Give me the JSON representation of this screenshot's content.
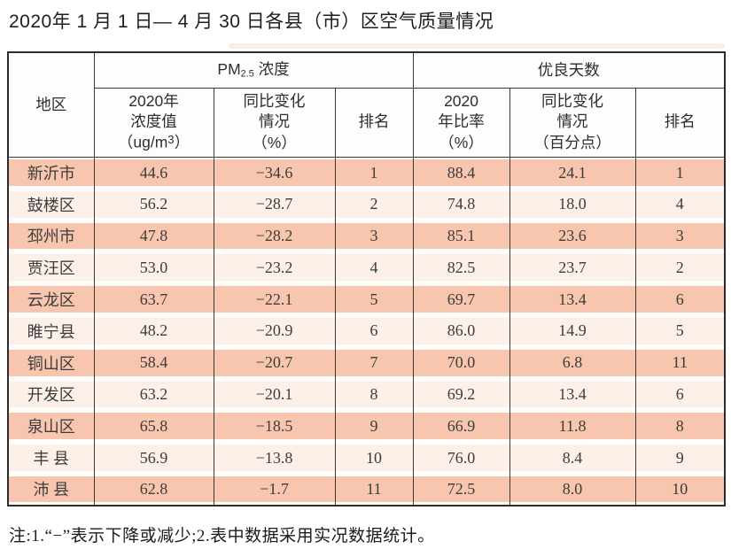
{
  "page_title": "2020年 1 月 1 日— 4 月 30 日各县（市）区空气质量情况",
  "note": "注:1.“−”表示下降或减少;2.表中数据采用实况数据统计。",
  "colors": {
    "band_odd": "#f8c6ae",
    "band_even": "#fdf0e9",
    "border_dark": "#383838",
    "header_bg": "#fffdfb"
  },
  "chart_data": {
    "type": "table",
    "title": "2020年 1 月 1 日— 4 月 30 日各县（市）区空气质量情况",
    "header": {
      "region": "地区",
      "pm_group_prefix": "PM",
      "pm_group_sub": "2.5",
      "pm_group_suffix": " 浓度",
      "good_days_group": "优良天数",
      "pm_value": "2020年\n浓度值\n（ug/m³）",
      "pm_value_line1": "2020年",
      "pm_value_line2": "浓度值",
      "pm_value_line3_prefix": "（ug/m",
      "pm_value_line3_sup": "3",
      "pm_value_line3_suffix": "）",
      "pm_change": "同比变化\n情况\n（%）",
      "pm_rank": "排名",
      "rate_value": "2020\n年比率\n（%）",
      "rate_change": "同比变化\n情况\n（百分点）",
      "rate_rank": "排名"
    },
    "columns": [
      "地区",
      "2020年浓度值（ug/m³）",
      "同比变化情况（%）",
      "排名",
      "2020年比率（%）",
      "同比变化情况（百分点）",
      "排名"
    ],
    "rows": [
      {
        "region": "新沂市",
        "pm_value": "44.6",
        "pm_change": "−34.6",
        "pm_rank": "1",
        "rate": "88.4",
        "rate_change": "24.1",
        "rate_rank": "1"
      },
      {
        "region": "鼓楼区",
        "pm_value": "56.2",
        "pm_change": "−28.7",
        "pm_rank": "2",
        "rate": "74.8",
        "rate_change": "18.0",
        "rate_rank": "4"
      },
      {
        "region": "邳州市",
        "pm_value": "47.8",
        "pm_change": "−28.2",
        "pm_rank": "3",
        "rate": "85.1",
        "rate_change": "23.6",
        "rate_rank": "3"
      },
      {
        "region": "贾汪区",
        "pm_value": "53.0",
        "pm_change": "−23.2",
        "pm_rank": "4",
        "rate": "82.5",
        "rate_change": "23.7",
        "rate_rank": "2"
      },
      {
        "region": "云龙区",
        "pm_value": "63.7",
        "pm_change": "−22.1",
        "pm_rank": "5",
        "rate": "69.7",
        "rate_change": "13.4",
        "rate_rank": "6"
      },
      {
        "region": "睢宁县",
        "pm_value": "48.2",
        "pm_change": "−20.9",
        "pm_rank": "6",
        "rate": "86.0",
        "rate_change": "14.9",
        "rate_rank": "5"
      },
      {
        "region": "铜山区",
        "pm_value": "58.4",
        "pm_change": "−20.7",
        "pm_rank": "7",
        "rate": "70.0",
        "rate_change": "6.8",
        "rate_rank": "11"
      },
      {
        "region": "开发区",
        "pm_value": "63.2",
        "pm_change": "−20.1",
        "pm_rank": "8",
        "rate": "69.2",
        "rate_change": "13.4",
        "rate_rank": "6"
      },
      {
        "region": "泉山区",
        "pm_value": "65.8",
        "pm_change": "−18.5",
        "pm_rank": "9",
        "rate": "66.9",
        "rate_change": "11.8",
        "rate_rank": "8"
      },
      {
        "region": "丰 县",
        "pm_value": "56.9",
        "pm_change": "−13.8",
        "pm_rank": "10",
        "rate": "76.0",
        "rate_change": "8.4",
        "rate_rank": "9"
      },
      {
        "region": "沛 县",
        "pm_value": "62.8",
        "pm_change": "−1.7",
        "pm_rank": "11",
        "rate": "72.5",
        "rate_change": "8.0",
        "rate_rank": "10"
      }
    ],
    "note": "注:1.“−”表示下降或减少;2.表中数据采用实况数据统计。"
  }
}
